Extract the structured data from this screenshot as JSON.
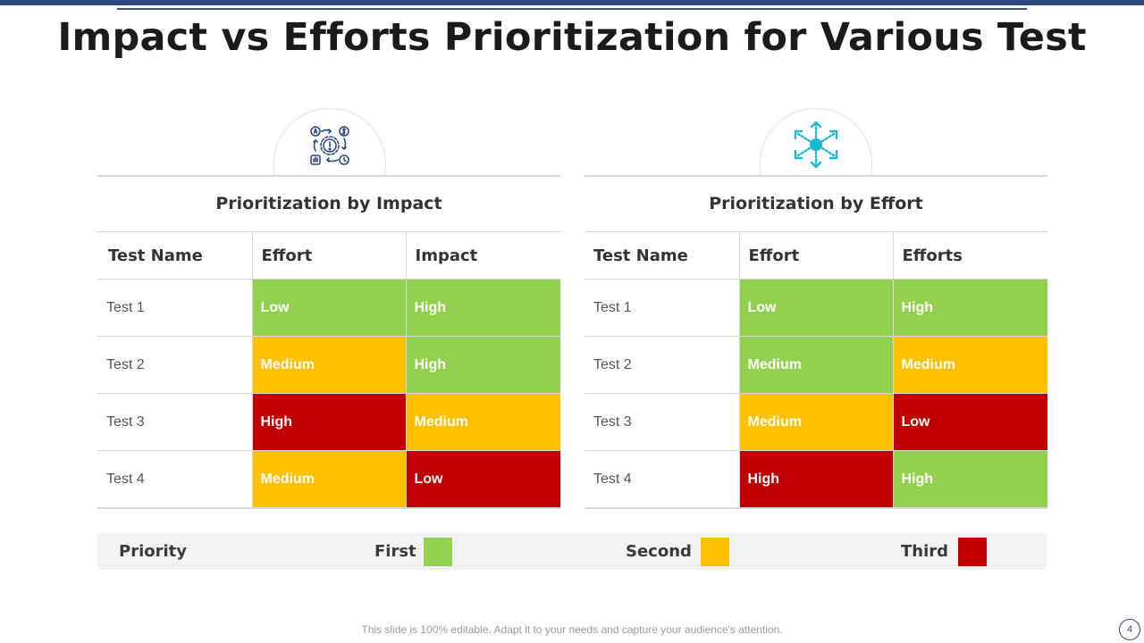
{
  "title": "Impact vs Efforts Prioritization for Various Test",
  "colors": {
    "high_priority": "#92d050",
    "medium_priority": "#ffc000",
    "low_priority": "#c00000",
    "accent": "#2e4a86"
  },
  "panels": [
    {
      "icon": "gear-dollar-cycle-icon",
      "heading": "Prioritization by Impact",
      "columns": [
        "Test Name",
        "Effort",
        "Impact"
      ],
      "rows": [
        {
          "name": "Test 1",
          "c1": "Low",
          "c2": "High",
          "c1_color": "#92d050",
          "c2_color": "#92d050"
        },
        {
          "name": "Test 2",
          "c1": "Medium",
          "c2": "High",
          "c1_color": "#ffc000",
          "c2_color": "#92d050"
        },
        {
          "name": "Test 3",
          "c1": "High",
          "c2": "Medium",
          "c1_color": "#c00000",
          "c2_color": "#ffc000"
        },
        {
          "name": "Test 4",
          "c1": "Medium",
          "c2": "Low",
          "c1_color": "#ffc000",
          "c2_color": "#c00000"
        }
      ]
    },
    {
      "icon": "network-arrows-icon",
      "heading": "Prioritization by Effort",
      "columns": [
        "Test Name",
        "Effort",
        "Efforts"
      ],
      "rows": [
        {
          "name": "Test 1",
          "c1": "Low",
          "c2": "High",
          "c1_color": "#92d050",
          "c2_color": "#92d050"
        },
        {
          "name": "Test 2",
          "c1": "Medium",
          "c2": "Medium",
          "c1_color": "#92d050",
          "c2_color": "#ffc000"
        },
        {
          "name": "Test 3",
          "c1": "Medium",
          "c2": "Low",
          "c1_color": "#ffc000",
          "c2_color": "#c00000"
        },
        {
          "name": "Test 4",
          "c1": "High",
          "c2": "High",
          "c1_color": "#c00000",
          "c2_color": "#92d050"
        }
      ]
    }
  ],
  "legend": {
    "label": "Priority",
    "items": [
      {
        "label": "First",
        "color": "#92d050"
      },
      {
        "label": "Second",
        "color": "#ffc000"
      },
      {
        "label": "Third",
        "color": "#c00000"
      }
    ]
  },
  "footer": "This slide is 100% editable. Adapt it to your needs and capture your audience's attention.",
  "page_number": "4"
}
